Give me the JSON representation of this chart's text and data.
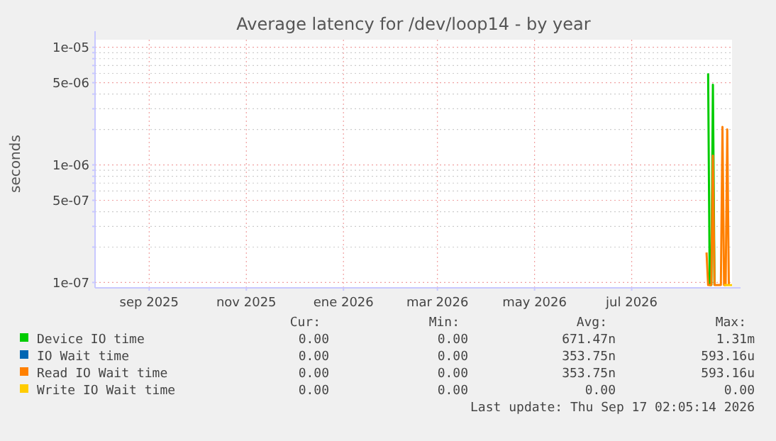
{
  "chart_data": {
    "type": "line",
    "title": "Average latency for /dev/loop14 - by year",
    "ylabel": "seconds",
    "log": "y",
    "grid": true,
    "legend": "bottom",
    "marker": "none",
    "line_style": "solid",
    "xlim": [
      "2025-07-29",
      "2026-09-02"
    ],
    "xticks": [
      {
        "value": "2025-09-01",
        "label": "sep 2025"
      },
      {
        "value": "2025-11-01",
        "label": "nov 2025"
      },
      {
        "value": "2026-01-01",
        "label": "ene 2026"
      },
      {
        "value": "2026-03-01",
        "label": "mar 2026"
      },
      {
        "value": "2026-05-01",
        "label": "may 2026"
      },
      {
        "value": "2026-07-01",
        "label": "jul 2026"
      }
    ],
    "ylim": [
      9e-08,
      1.16e-05
    ],
    "yticks": [
      {
        "value": 1e-07,
        "label": "1e-07"
      },
      {
        "value": 2e-07,
        "label": null
      },
      {
        "value": 3e-07,
        "label": null
      },
      {
        "value": 4e-07,
        "label": null
      },
      {
        "value": 5e-07,
        "label": "5e-07"
      },
      {
        "value": 6e-07,
        "label": null
      },
      {
        "value": 7e-07,
        "label": null
      },
      {
        "value": 8e-07,
        "label": null
      },
      {
        "value": 9e-07,
        "label": null
      },
      {
        "value": 1e-06,
        "label": "1e-06"
      },
      {
        "value": 2e-06,
        "label": null
      },
      {
        "value": 3e-06,
        "label": null
      },
      {
        "value": 4e-06,
        "label": null
      },
      {
        "value": 5e-06,
        "label": "5e-06"
      },
      {
        "value": 6e-06,
        "label": null
      },
      {
        "value": 7e-06,
        "label": null
      },
      {
        "value": 8e-06,
        "label": null
      },
      {
        "value": 9e-06,
        "label": null
      },
      {
        "value": 1e-05,
        "label": "1e-05"
      }
    ],
    "x": [
      "2026-08-17",
      "2026-08-18",
      "2026-08-19",
      "2026-08-20",
      "2026-08-21",
      "2026-08-22",
      "2026-08-26",
      "2026-08-27",
      "2026-08-28",
      "2026-08-29",
      "2026-08-30",
      "2026-08-31",
      "2026-09-01",
      "2026-09-02"
    ],
    "series": [
      {
        "name": "Device IO time",
        "color": "#00cc00",
        "values": [
          null,
          6e-06,
          9.5e-08,
          9.5e-08,
          4.8e-06,
          9.5e-08,
          null,
          null,
          null,
          null,
          null,
          null,
          null,
          null
        ]
      },
      {
        "name": "IO Wait time",
        "color": "#0066b3",
        "values": [
          null,
          null,
          null,
          null,
          null,
          null,
          null,
          null,
          null,
          null,
          null,
          null,
          null,
          null
        ]
      },
      {
        "name": "Read IO Wait time",
        "color": "#ff8000",
        "values": [
          1.8e-07,
          9.5e-08,
          9.5e-08,
          9.5e-08,
          1.2e-06,
          9.5e-08,
          9.5e-08,
          2.1e-06,
          9.5e-08,
          9.5e-08,
          2e-06,
          9.5e-08,
          null,
          null
        ]
      },
      {
        "name": "Write IO Wait time",
        "color": "#ffcc00",
        "values": [
          null,
          null,
          null,
          null,
          null,
          null,
          null,
          null,
          9.5e-08,
          9.5e-08,
          9.5e-08,
          9.5e-08,
          9.5e-08,
          9.5e-08
        ]
      }
    ],
    "annotations": [
      "Cur:",
      "Min:",
      "Avg:",
      "Max:",
      "0.00",
      "0.00",
      "671.47n",
      "1.31m",
      "0.00",
      "0.00",
      "353.75n",
      "593.16u",
      "0.00",
      "0.00",
      "353.75n",
      "593.16u",
      "0.00",
      "0.00",
      "0.00",
      "0.00",
      "Last update: Thu Sep 17 02:05:14 2026"
    ]
  }
}
